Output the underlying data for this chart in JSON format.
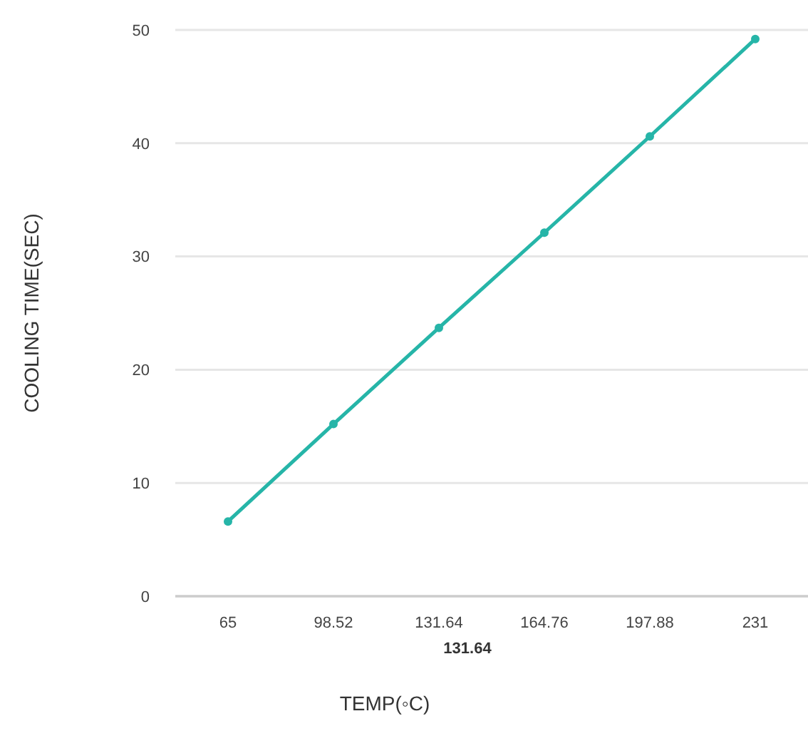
{
  "chart_data": {
    "type": "line",
    "xlabel": "TEMP(◦C)",
    "ylabel": "COOLING TIME(SEC)",
    "categories": [
      "65",
      "98.52",
      "131.64",
      "164.76",
      "197.88",
      "231"
    ],
    "series": [
      {
        "color": "#26b5a8",
        "values": [
          6.6,
          15.2,
          23.7,
          32.1,
          40.6,
          49.2
        ]
      }
    ],
    "ylim": [
      0,
      50
    ],
    "yticks": [
      0,
      10,
      20,
      30,
      40,
      50
    ],
    "grid": "y",
    "marker": "circle",
    "line_style": "solid",
    "annotations": [
      "131.64"
    ]
  }
}
